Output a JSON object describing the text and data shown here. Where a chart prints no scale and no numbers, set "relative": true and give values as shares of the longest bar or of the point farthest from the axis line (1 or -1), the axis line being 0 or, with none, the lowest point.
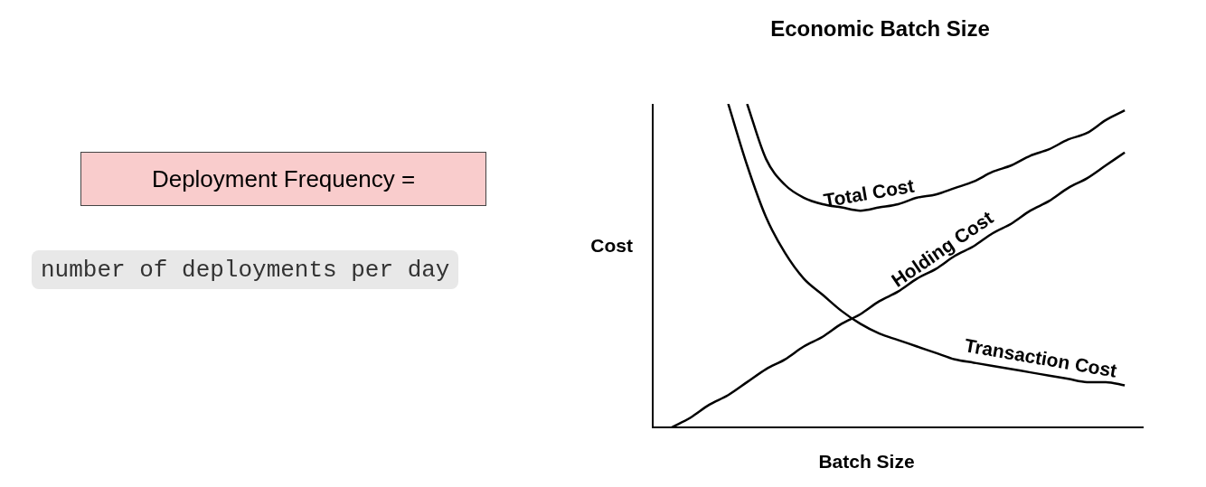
{
  "chart_data": [
    {
      "type": "other",
      "annotations": [
        "Deployment Frequency =",
        "number of deployments per day"
      ]
    },
    {
      "type": "line",
      "title": "Economic Batch Size",
      "xlabel": "Batch Size",
      "ylabel": "Cost",
      "relative": true,
      "legend": false,
      "marker": "none",
      "line_style": "solid",
      "categories": [
        null,
        null,
        null,
        null,
        null,
        null,
        null,
        null,
        null,
        null,
        null,
        null,
        null,
        null,
        null,
        null,
        null,
        null,
        null,
        null,
        null,
        null,
        null,
        null,
        null,
        null,
        null
      ],
      "series": [
        {
          "name": "Total Cost",
          "color": "#000000",
          "values": [
            null,
            null,
            null,
            null,
            null,
            1.0,
            0.83,
            0.75,
            0.71,
            0.69,
            0.68,
            0.67,
            0.68,
            0.69,
            0.71,
            0.72,
            0.74,
            0.76,
            0.79,
            0.81,
            0.84,
            0.86,
            0.89,
            0.91,
            0.95,
            0.98,
            null
          ]
        },
        {
          "name": "Holding Cost",
          "color": "#000000",
          "values": [
            null,
            0.0,
            0.03,
            0.07,
            0.1,
            0.14,
            0.18,
            0.21,
            0.25,
            0.28,
            0.32,
            0.35,
            0.39,
            0.42,
            0.46,
            0.49,
            0.53,
            0.56,
            0.6,
            0.63,
            0.67,
            0.7,
            0.74,
            0.77,
            0.81,
            0.85,
            null
          ]
        },
        {
          "name": "Transaction Cost",
          "color": "#000000",
          "values": [
            null,
            null,
            null,
            null,
            1.0,
            0.81,
            0.65,
            0.54,
            0.46,
            0.41,
            0.36,
            0.32,
            0.29,
            0.27,
            0.25,
            0.23,
            0.21,
            0.2,
            0.19,
            0.18,
            0.17,
            0.16,
            0.15,
            0.14,
            0.14,
            0.13,
            null
          ]
        }
      ]
    }
  ]
}
